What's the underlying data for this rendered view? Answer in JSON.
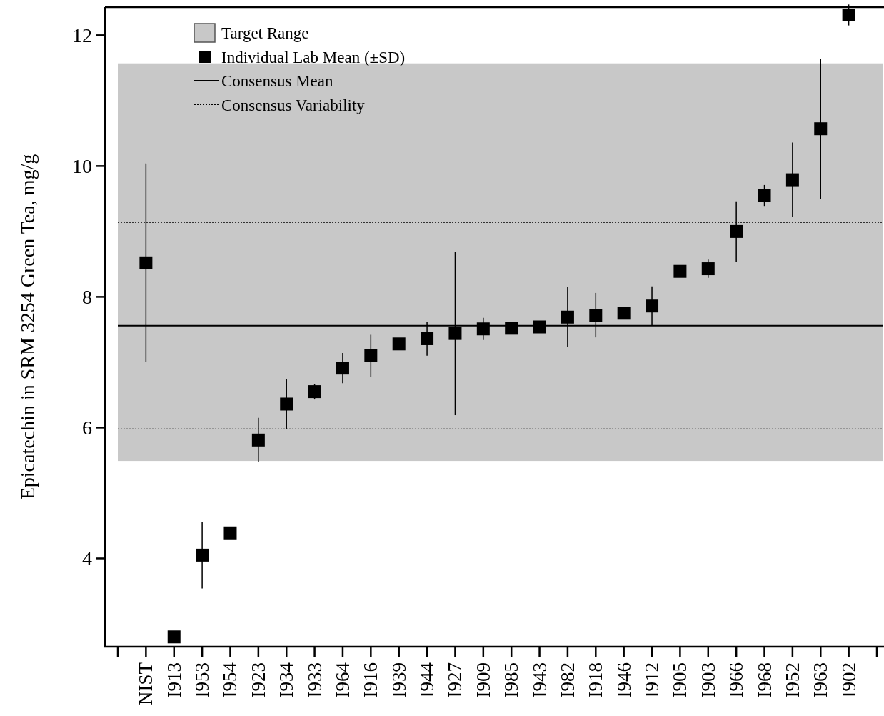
{
  "chart_data": {
    "type": "scatter",
    "ylabel": "Epicatechin in SRM 3254 Green Tea, mg/g",
    "categories": [
      null,
      "NIST",
      "I913",
      "I953",
      "I954",
      "I923",
      "I934",
      "I933",
      "I964",
      "I916",
      "I939",
      "I944",
      "I927",
      "I909",
      "I985",
      "I943",
      "I982",
      "I918",
      "I946",
      "I912",
      "I905",
      "I903",
      "I966",
      "I968",
      "I952",
      "I963",
      "I902",
      null
    ],
    "series": [
      {
        "name": "Individual Lab Mean (±SD)",
        "color": "#000000",
        "values": [
          null,
          8.52,
          2.8,
          4.05,
          4.39,
          5.81,
          6.36,
          6.55,
          6.91,
          7.1,
          7.28,
          7.36,
          7.44,
          7.51,
          7.52,
          7.54,
          7.69,
          7.72,
          7.75,
          7.86,
          8.39,
          8.43,
          9.0,
          9.55,
          9.79,
          10.57,
          12.31,
          null
        ],
        "errors": [
          null,
          1.52,
          null,
          0.51,
          null,
          0.34,
          0.38,
          0.12,
          0.23,
          0.32,
          null,
          0.26,
          1.25,
          0.17,
          null,
          null,
          0.46,
          0.34,
          null,
          0.3,
          null,
          0.14,
          0.46,
          0.16,
          0.57,
          1.07,
          0.16,
          null
        ]
      }
    ],
    "bands": [
      {
        "axis": "y",
        "from": 5.49,
        "to": 11.57,
        "label": "Target Range",
        "color": "#c8c8c8"
      }
    ],
    "ref_lines": [
      {
        "axis": "y",
        "value": 7.56,
        "label": "Consensus Mean",
        "color": "#000000",
        "line_style": "solid"
      },
      {
        "axis": "y",
        "value": 9.14,
        "label": "Consensus Variability",
        "color": "#000000",
        "line_style": "dotted"
      },
      {
        "axis": "y",
        "value": 5.98,
        "color": "#000000",
        "line_style": "dotted"
      }
    ],
    "ylim": [
      2.65,
      12.43
    ],
    "yticks": [
      4,
      6,
      8,
      10,
      12
    ],
    "marker": "square",
    "legend": "top left",
    "grid": false
  }
}
